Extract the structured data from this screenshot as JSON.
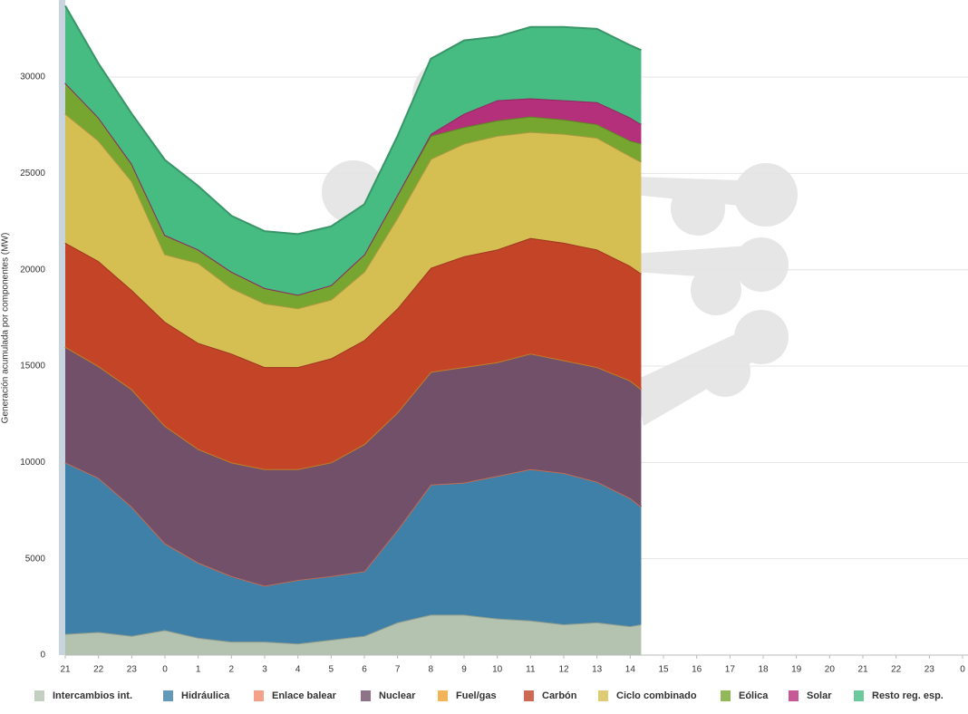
{
  "chart_data": {
    "type": "stacked_area",
    "y_label": "Generación acumulada por componentes (MW)",
    "x": [
      0,
      1,
      2,
      3,
      4,
      5,
      6,
      7,
      8,
      9,
      10,
      11,
      12,
      13,
      14,
      15,
      16,
      17,
      17.33
    ],
    "xlim": [
      0,
      27
    ],
    "xticks": [
      {
        "value": 0,
        "label": "21"
      },
      {
        "value": 1,
        "label": "22"
      },
      {
        "value": 2,
        "label": "23"
      },
      {
        "value": 3,
        "label": "0"
      },
      {
        "value": 4,
        "label": "1"
      },
      {
        "value": 5,
        "label": "2"
      },
      {
        "value": 6,
        "label": "3"
      },
      {
        "value": 7,
        "label": "4"
      },
      {
        "value": 8,
        "label": "5"
      },
      {
        "value": 9,
        "label": "6"
      },
      {
        "value": 10,
        "label": "7"
      },
      {
        "value": 11,
        "label": "8"
      },
      {
        "value": 12,
        "label": "9"
      },
      {
        "value": 13,
        "label": "10"
      },
      {
        "value": 14,
        "label": "11"
      },
      {
        "value": 15,
        "label": "12"
      },
      {
        "value": 16,
        "label": "13"
      },
      {
        "value": 17,
        "label": "14"
      },
      {
        "value": 18,
        "label": "15"
      },
      {
        "value": 19,
        "label": "16"
      },
      {
        "value": 20,
        "label": "17"
      },
      {
        "value": 21,
        "label": "18"
      },
      {
        "value": 22,
        "label": "19"
      },
      {
        "value": 23,
        "label": "20"
      },
      {
        "value": 24,
        "label": "21"
      },
      {
        "value": 25,
        "label": "22"
      },
      {
        "value": 26,
        "label": "23"
      },
      {
        "value": 27,
        "label": "0"
      }
    ],
    "ylim": [
      0,
      34000
    ],
    "yticks": [
      0,
      5000,
      10000,
      15000,
      20000,
      25000,
      30000
    ],
    "grid": true,
    "legend": "bottom",
    "series": [
      {
        "name": "Intercambios int.",
        "color": "#b4c3b0",
        "values": [
          1100,
          1200,
          1000,
          1300,
          900,
          700,
          700,
          600,
          800,
          1000,
          1700,
          2100,
          2100,
          1900,
          1800,
          1600,
          1700,
          1500,
          1600
        ]
      },
      {
        "name": "Hidráulica",
        "color": "#3e80a8",
        "values": [
          8900,
          8000,
          6700,
          4500,
          3900,
          3400,
          2900,
          3300,
          3300,
          3350,
          4800,
          6750,
          6850,
          7400,
          7850,
          7850,
          7300,
          6650,
          6100
        ]
      },
      {
        "name": "Enlace balear",
        "color": "#f28a6c",
        "values": [
          0,
          0,
          0,
          0,
          0,
          0,
          0,
          0,
          0,
          0,
          0,
          0,
          0,
          0,
          0,
          0,
          0,
          0,
          0
        ]
      },
      {
        "name": "Nuclear",
        "color": "#72506a",
        "values": [
          6000,
          5800,
          6100,
          6100,
          5900,
          5900,
          6050,
          5750,
          5900,
          6600,
          6100,
          5850,
          6000,
          5900,
          6000,
          5850,
          5950,
          6100,
          6100
        ]
      },
      {
        "name": "Fuel/gas",
        "color": "#f0a030",
        "values": [
          0,
          0,
          0,
          0,
          0,
          0,
          0,
          0,
          0,
          0,
          0,
          0,
          0,
          0,
          0,
          0,
          0,
          0,
          0
        ]
      },
      {
        "name": "Carbón",
        "color": "#c44428",
        "values": [
          5400,
          5450,
          5150,
          5400,
          5500,
          5650,
          5300,
          5300,
          5400,
          5400,
          5400,
          5400,
          5750,
          5850,
          6000,
          6100,
          6100,
          5950,
          6000
        ]
      },
      {
        "name": "Ciclo combinado",
        "color": "#d6bf52",
        "values": [
          6700,
          6250,
          5650,
          3500,
          4150,
          3400,
          3300,
          3050,
          3050,
          3550,
          4700,
          5650,
          5850,
          5900,
          5500,
          5650,
          5800,
          5700,
          5800
        ]
      },
      {
        "name": "Eólica",
        "color": "#77a630",
        "values": [
          1600,
          1200,
          900,
          1000,
          700,
          850,
          800,
          700,
          750,
          900,
          1200,
          1200,
          850,
          800,
          800,
          750,
          700,
          800,
          950
        ]
      },
      {
        "name": "Solar",
        "color": "#b5307a",
        "values": [
          0,
          0,
          0,
          0,
          0,
          0,
          0,
          0,
          0,
          0,
          0,
          100,
          700,
          1050,
          950,
          1000,
          1150,
          1200,
          1000
        ]
      },
      {
        "name": "Resto reg. esp.",
        "color": "#46bb82",
        "values": [
          4000,
          2800,
          2600,
          3900,
          3300,
          2900,
          2950,
          3150,
          3050,
          2600,
          3050,
          3900,
          3800,
          3300,
          3700,
          3800,
          3800,
          3750,
          3850
        ]
      }
    ]
  }
}
